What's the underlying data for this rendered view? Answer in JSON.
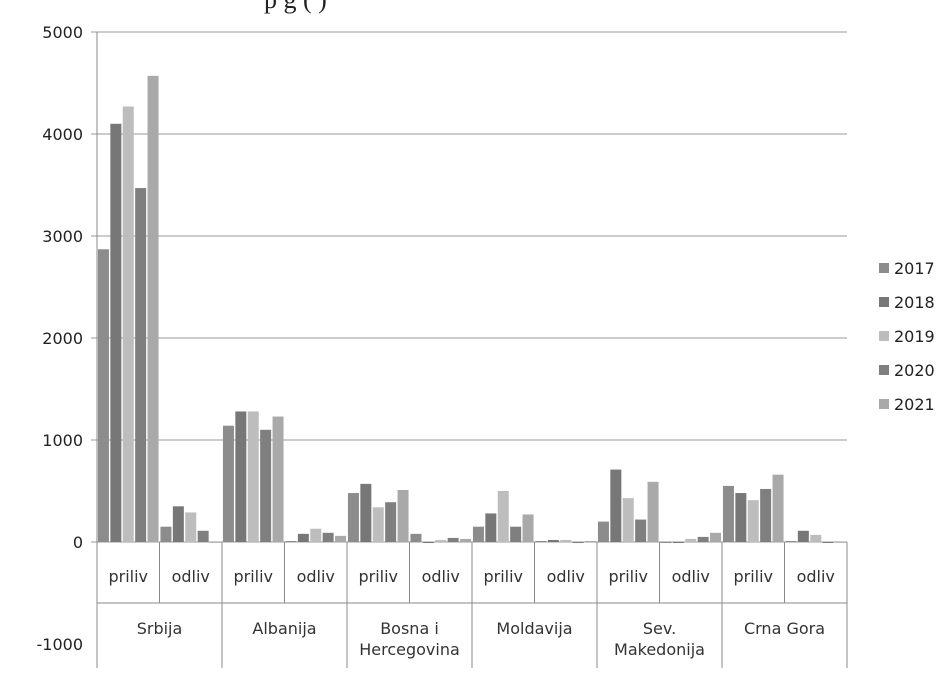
{
  "title_fragment": "p                              g     (                    )",
  "chart_data": {
    "type": "bar",
    "ylim": [
      -1000,
      5000
    ],
    "yticks": [
      "5000",
      "4000",
      "3000",
      "2000",
      "1000",
      "0",
      "-1000"
    ],
    "grid": true,
    "legend_position": "right",
    "groups": [
      {
        "name": "Srbija",
        "name_lines": [
          "Srbija"
        ],
        "subcategories": [
          "priliv",
          "odliv"
        ]
      },
      {
        "name": "Albanija",
        "name_lines": [
          "Albanija"
        ],
        "subcategories": [
          "priliv",
          "odliv"
        ]
      },
      {
        "name": "Bosna i Hercegovina",
        "name_lines": [
          "Bosna i",
          "Hercegovina"
        ],
        "subcategories": [
          "priliv",
          "odliv"
        ]
      },
      {
        "name": "Moldavija",
        "name_lines": [
          "Moldavija"
        ],
        "subcategories": [
          "priliv",
          "odliv"
        ]
      },
      {
        "name": "Sev. Makedonija",
        "name_lines": [
          "Sev.",
          "Makedonija"
        ],
        "subcategories": [
          "priliv",
          "odliv"
        ]
      },
      {
        "name": "Crna Gora",
        "name_lines": [
          "Crna Gora"
        ],
        "subcategories": [
          "priliv",
          "odliv"
        ]
      }
    ],
    "series": [
      {
        "name": "2017",
        "color": "#8c8c8c",
        "values": [
          2870,
          150,
          1140,
          10,
          480,
          80,
          150,
          10,
          200,
          -10,
          550,
          10
        ]
      },
      {
        "name": "2018",
        "color": "#777777",
        "values": [
          4100,
          350,
          1280,
          80,
          570,
          -10,
          280,
          20,
          710,
          -10,
          480,
          110
        ]
      },
      {
        "name": "2019",
        "color": "#bdbdbd",
        "values": [
          4270,
          290,
          1280,
          130,
          340,
          20,
          500,
          20,
          430,
          30,
          410,
          70
        ]
      },
      {
        "name": "2020",
        "color": "#7f7f7f",
        "values": [
          3470,
          110,
          1100,
          90,
          390,
          40,
          150,
          -10,
          220,
          50,
          520,
          -10
        ]
      },
      {
        "name": "2021",
        "color": "#a9a9a9",
        "values": [
          4570,
          0,
          1230,
          60,
          510,
          30,
          270,
          10,
          590,
          90,
          660,
          0
        ]
      }
    ]
  }
}
